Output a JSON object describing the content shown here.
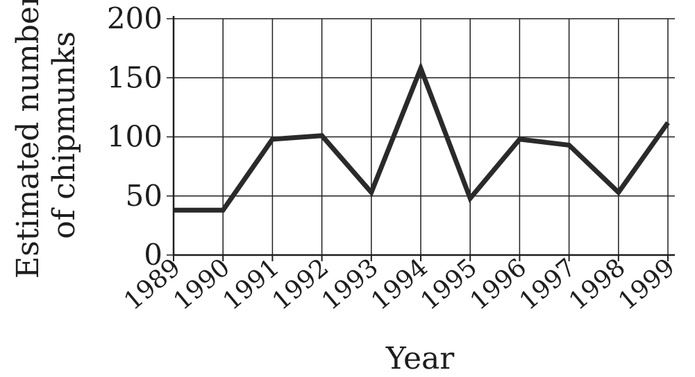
{
  "chart_data": {
    "type": "line",
    "title": "",
    "xlabel": "Year",
    "ylabel_lines": [
      "Estimated number",
      "of chipmunks"
    ],
    "x": [
      "1989",
      "1990",
      "1991",
      "1992",
      "1993",
      "1994",
      "1995",
      "1996",
      "1997",
      "1998",
      "1999"
    ],
    "y_ticks": [
      0,
      50,
      100,
      150,
      200
    ],
    "ylim": [
      0,
      200
    ],
    "grid": true,
    "series": [
      {
        "values": [
          38,
          38,
          98,
          101,
          53,
          158,
          48,
          98,
          93,
          53,
          112
        ]
      }
    ],
    "colors": {
      "line": "#2a2a2a",
      "grid": "#1e1e1e",
      "text": "#1e1e1e"
    }
  }
}
